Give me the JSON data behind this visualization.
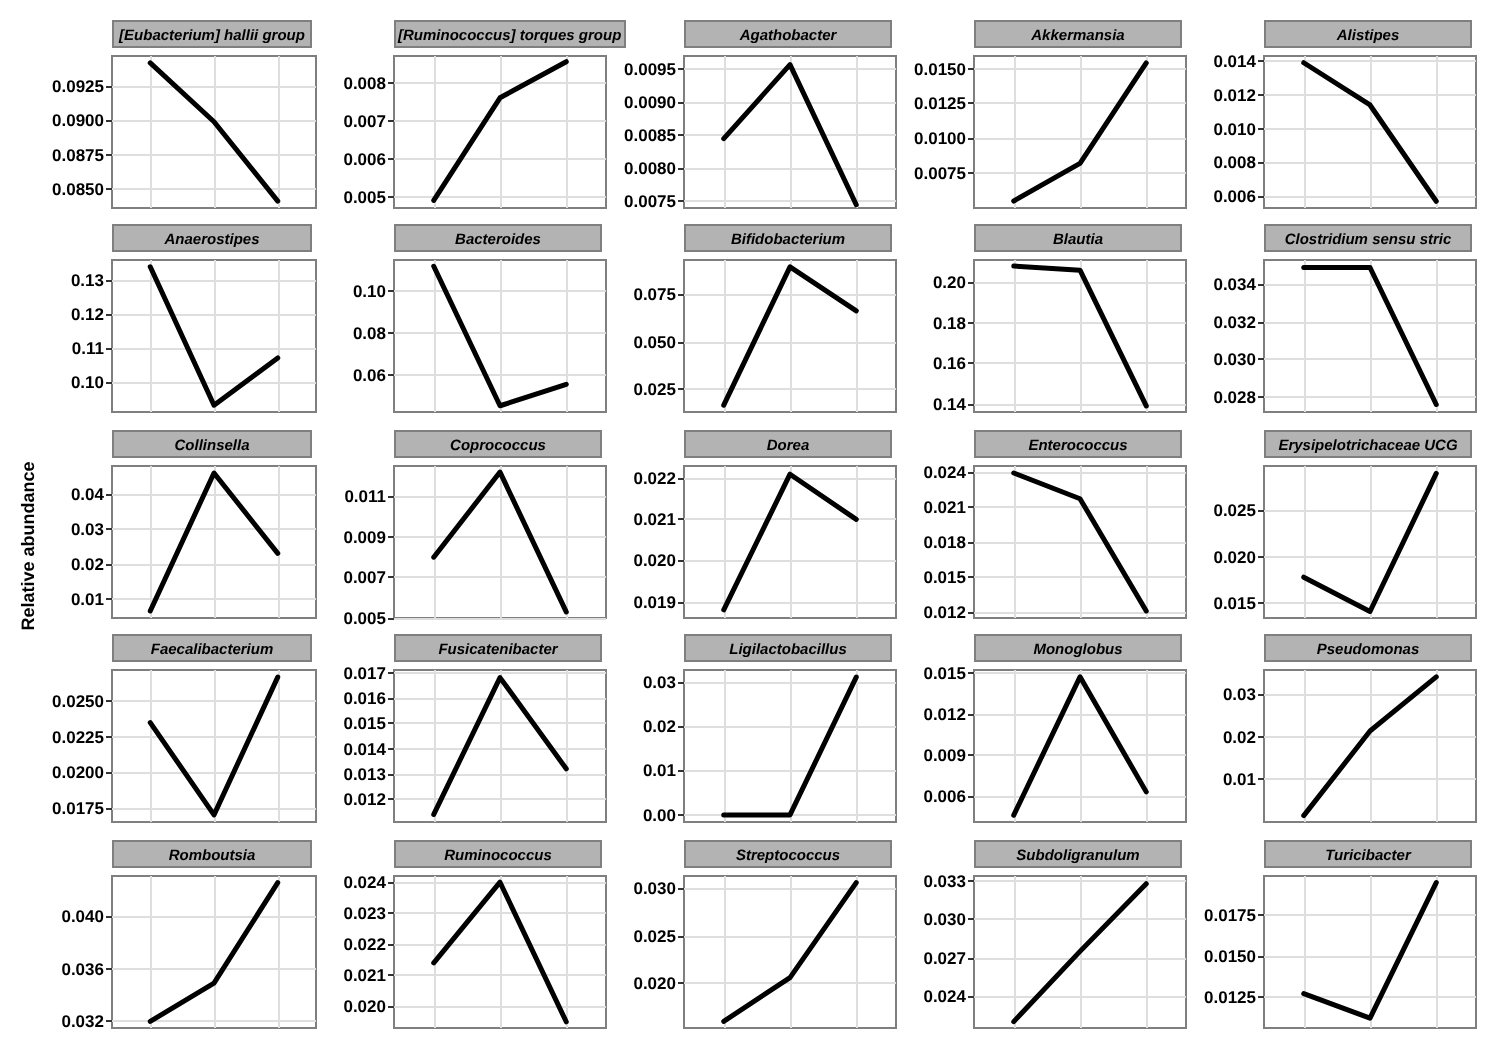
{
  "chart_data": [
    {
      "type": "line",
      "title": "[Eubacterium] hallii group",
      "categories": [
        null,
        null,
        null
      ],
      "values": [
        0.0942,
        0.0899,
        0.0841
      ],
      "color": "#000000",
      "ylim": [
        0.0836,
        0.0947
      ],
      "yticks": [
        {
          "value": 0.085,
          "label": "0.0850"
        },
        0.0875,
        {
          "value": 0.09,
          "label": "0.0900"
        },
        0.0925
      ],
      "grid": true,
      "marker": "none",
      "tick_labels": "y"
    },
    {
      "type": "line",
      "title": "[Ruminococcus] torques group",
      "categories": [
        null,
        null,
        null
      ],
      "values": [
        0.0049,
        0.0076,
        0.00855
      ],
      "color": "#000000",
      "ylim": [
        0.0047,
        0.0087
      ],
      "yticks": [
        0.005,
        0.006,
        0.007,
        0.008
      ],
      "grid": true,
      "marker": "none",
      "tick_labels": "y"
    },
    {
      "type": "line",
      "title": "Agathobacter",
      "categories": [
        null,
        null,
        null
      ],
      "values": [
        0.00845,
        0.00957,
        0.00745
      ],
      "color": "#000000",
      "ylim": [
        0.0074,
        0.0097
      ],
      "yticks": [
        0.0075,
        {
          "value": 0.008,
          "label": "0.0080"
        },
        0.0085,
        {
          "value": 0.009,
          "label": "0.0090"
        },
        0.0095
      ],
      "grid": true,
      "marker": "none",
      "tick_labels": "y"
    },
    {
      "type": "line",
      "title": "Akkermansia",
      "categories": [
        null,
        null,
        null
      ],
      "values": [
        0.0055,
        0.0082,
        0.0154
      ],
      "color": "#000000",
      "ylim": [
        0.005,
        0.0159
      ],
      "yticks": [
        0.0075,
        {
          "value": 0.01,
          "label": "0.0100"
        },
        0.0125,
        {
          "value": 0.015,
          "label": "0.0150"
        }
      ],
      "grid": true,
      "marker": "none",
      "tick_labels": "y"
    },
    {
      "type": "line",
      "title": "Alistipes",
      "categories": [
        null,
        null,
        null
      ],
      "values": [
        0.0139,
        0.0114,
        0.0057
      ],
      "color": "#000000",
      "ylim": [
        0.0053,
        0.0143
      ],
      "yticks": [
        0.006,
        0.008,
        {
          "value": 0.01,
          "label": "0.010"
        },
        0.012,
        0.014
      ],
      "grid": true,
      "marker": "none",
      "tick_labels": "y"
    },
    {
      "type": "line",
      "title": "Anaerostipes",
      "categories": [
        null,
        null,
        null
      ],
      "values": [
        0.134,
        0.093,
        0.107
      ],
      "color": "#000000",
      "ylim": [
        0.091,
        0.136
      ],
      "yticks": [
        {
          "value": 0.1,
          "label": "0.10"
        },
        0.11,
        0.12,
        0.13
      ],
      "grid": true,
      "marker": "none",
      "tick_labels": "y"
    },
    {
      "type": "line",
      "title": "Bacteroides",
      "categories": [
        null,
        null,
        null
      ],
      "values": [
        0.112,
        0.045,
        0.0553
      ],
      "color": "#000000",
      "ylim": [
        0.042,
        0.115
      ],
      "yticks": [
        0.06,
        0.08,
        {
          "value": 0.1,
          "label": "0.10"
        }
      ],
      "grid": true,
      "marker": "none",
      "tick_labels": "y"
    },
    {
      "type": "line",
      "title": "Bifidobacterium",
      "categories": [
        null,
        null,
        null
      ],
      "values": [
        0.0163,
        0.0896,
        0.0663
      ],
      "color": "#000000",
      "ylim": [
        0.0127,
        0.0932
      ],
      "yticks": [
        0.025,
        {
          "value": 0.05,
          "label": "0.050"
        },
        0.075
      ],
      "grid": true,
      "marker": "none",
      "tick_labels": "y"
    },
    {
      "type": "line",
      "title": "Blautia",
      "categories": [
        null,
        null,
        null
      ],
      "values": [
        0.208,
        0.206,
        0.139
      ],
      "color": "#000000",
      "ylim": [
        0.136,
        0.211
      ],
      "yticks": [
        0.14,
        0.16,
        0.18,
        {
          "value": 0.2,
          "label": "0.20"
        }
      ],
      "grid": true,
      "marker": "none",
      "tick_labels": "y"
    },
    {
      "type": "line",
      "title": "Clostridium sensu stric",
      "categories": [
        null,
        null,
        null
      ],
      "values": [
        0.0349,
        0.0349,
        0.0276
      ],
      "color": "#000000",
      "ylim": [
        0.0272,
        0.0353
      ],
      "yticks": [
        0.028,
        {
          "value": 0.03,
          "label": "0.030"
        },
        0.032,
        0.034
      ],
      "grid": true,
      "marker": "none",
      "tick_labels": "y"
    },
    {
      "type": "line",
      "title": "Collinsella",
      "ylabel": "Relative abundance",
      "categories": [
        null,
        null,
        null
      ],
      "values": [
        0.0065,
        0.046,
        0.023
      ],
      "color": "#000000",
      "ylim": [
        0.0045,
        0.048
      ],
      "yticks": [
        0.01,
        0.02,
        0.03,
        0.04
      ],
      "grid": true,
      "marker": "none",
      "tick_labels": "y"
    },
    {
      "type": "line",
      "title": "Coprococcus",
      "categories": [
        null,
        null,
        null
      ],
      "values": [
        0.008,
        0.0122,
        0.0053
      ],
      "color": "#000000",
      "ylim": [
        0.005,
        0.0125
      ],
      "yticks": [
        0.005,
        0.007,
        0.009,
        0.011
      ],
      "grid": true,
      "marker": "none",
      "tick_labels": "y"
    },
    {
      "type": "line",
      "title": "Dorea",
      "categories": [
        null,
        null,
        null
      ],
      "values": [
        0.0188,
        0.0221,
        0.021
      ],
      "color": "#000000",
      "ylim": [
        0.0186,
        0.0223
      ],
      "yticks": [
        0.019,
        {
          "value": 0.02,
          "label": "0.020"
        },
        0.021,
        0.022
      ],
      "grid": true,
      "marker": "none",
      "tick_labels": "y"
    },
    {
      "type": "line",
      "title": "Enterococcus",
      "categories": [
        null,
        null,
        null
      ],
      "values": [
        0.0239,
        0.0217,
        0.0121
      ],
      "color": "#000000",
      "ylim": [
        0.0115,
        0.0245
      ],
      "yticks": [
        0.012,
        0.015,
        0.018,
        0.021,
        0.024
      ],
      "grid": true,
      "marker": "none",
      "tick_labels": "y"
    },
    {
      "type": "line",
      "title": "Erysipelotrichaceae UCG",
      "categories": [
        null,
        null,
        null
      ],
      "values": [
        0.0178,
        0.0141,
        0.029
      ],
      "color": "#000000",
      "ylim": [
        0.0134,
        0.0298
      ],
      "yticks": [
        0.015,
        {
          "value": 0.02,
          "label": "0.020"
        },
        0.025
      ],
      "grid": true,
      "marker": "none",
      "tick_labels": "y"
    },
    {
      "type": "line",
      "title": "Faecalibacterium",
      "categories": [
        null,
        null,
        null
      ],
      "values": [
        0.0235,
        0.017,
        0.0267
      ],
      "color": "#000000",
      "ylim": [
        0.0165,
        0.0272
      ],
      "yticks": [
        0.0175,
        {
          "value": 0.02,
          "label": "0.0200"
        },
        0.0225,
        {
          "value": 0.025,
          "label": "0.0250"
        }
      ],
      "grid": true,
      "marker": "none",
      "tick_labels": "y"
    },
    {
      "type": "line",
      "title": "Fusicatenibacter",
      "categories": [
        null,
        null,
        null
      ],
      "values": [
        0.0114,
        0.0168,
        0.0132
      ],
      "color": "#000000",
      "ylim": [
        0.0111,
        0.0171
      ],
      "yticks": [
        0.012,
        0.013,
        0.014,
        0.015,
        0.016,
        0.017
      ],
      "grid": true,
      "marker": "none",
      "tick_labels": "y"
    },
    {
      "type": "line",
      "title": "Ligilactobacillus",
      "categories": [
        null,
        null,
        null
      ],
      "values": [
        0,
        0,
        0.031
      ],
      "color": "#000000",
      "ylim": [
        -0.0016,
        0.0326
      ],
      "yticks": [
        {
          "value": 0,
          "label": "0.00"
        },
        0.01,
        0.02,
        0.03
      ],
      "grid": true,
      "marker": "none",
      "tick_labels": "y"
    },
    {
      "type": "line",
      "title": "Monoglobus",
      "categories": [
        null,
        null,
        null
      ],
      "values": [
        0.0046,
        0.0147,
        0.0063
      ],
      "color": "#000000",
      "ylim": [
        0.0041,
        0.0152
      ],
      "yticks": [
        0.006,
        0.009,
        0.012,
        0.015
      ],
      "grid": true,
      "marker": "none",
      "tick_labels": "y"
    },
    {
      "type": "line",
      "title": "Pseudomonas",
      "categories": [
        null,
        null,
        null
      ],
      "values": [
        0.0015,
        0.0213,
        0.034
      ],
      "color": "#000000",
      "ylim": [
        0,
        0.0356
      ],
      "yticks": [
        0.01,
        0.02,
        0.03
      ],
      "grid": true,
      "marker": "none",
      "tick_labels": "y"
    },
    {
      "type": "line",
      "title": "Romboutsia",
      "categories": [
        null,
        null,
        null
      ],
      "values": [
        0.032,
        0.0349,
        0.0425
      ],
      "color": "#000000",
      "ylim": [
        0.0315,
        0.043
      ],
      "yticks": [
        0.032,
        0.036,
        {
          "value": 0.04,
          "label": "0.040"
        }
      ],
      "grid": true,
      "marker": "none",
      "tick_labels": "y"
    },
    {
      "type": "line",
      "title": "Ruminococcus",
      "categories": [
        null,
        null,
        null
      ],
      "values": [
        0.0214,
        0.024,
        0.0195
      ],
      "color": "#000000",
      "ylim": [
        0.0193,
        0.0242
      ],
      "yticks": [
        {
          "value": 0.02,
          "label": "0.020"
        },
        0.021,
        0.022,
        0.023,
        0.024
      ],
      "grid": true,
      "marker": "none",
      "tick_labels": "y"
    },
    {
      "type": "line",
      "title": "Streptococcus",
      "categories": [
        null,
        null,
        null
      ],
      "values": [
        0.016,
        0.0206,
        0.0306
      ],
      "color": "#000000",
      "ylim": [
        0.0153,
        0.0313
      ],
      "yticks": [
        {
          "value": 0.02,
          "label": "0.020"
        },
        0.025,
        {
          "value": 0.03,
          "label": "0.030"
        }
      ],
      "grid": true,
      "marker": "none",
      "tick_labels": "y"
    },
    {
      "type": "line",
      "title": "Subdoligranulum",
      "categories": [
        null,
        null,
        null
      ],
      "values": [
        0.022,
        0.0275,
        0.0328
      ],
      "color": "#000000",
      "ylim": [
        0.0215,
        0.0334
      ],
      "yticks": [
        0.024,
        0.027,
        {
          "value": 0.03,
          "label": "0.030"
        },
        0.033
      ],
      "grid": true,
      "marker": "none",
      "tick_labels": "y"
    },
    {
      "type": "line",
      "title": "Turicibacter",
      "categories": [
        null,
        null,
        null
      ],
      "values": [
        0.0127,
        0.0112,
        0.0195
      ],
      "color": "#000000",
      "ylim": [
        0.0106,
        0.0199
      ],
      "yticks": [
        0.0125,
        {
          "value": 0.015,
          "label": "0.0150"
        },
        0.0175
      ],
      "grid": true,
      "marker": "none",
      "tick_labels": "y"
    }
  ]
}
